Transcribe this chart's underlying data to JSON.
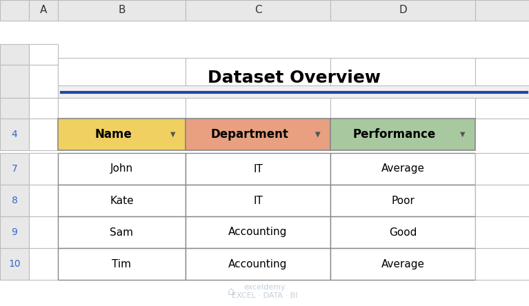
{
  "title": "Dataset Overview",
  "title_fontsize": 18,
  "title_fontweight": "bold",
  "col_headers": [
    "Name",
    "Department",
    "Performance"
  ],
  "col_header_colors": [
    "#F0D060",
    "#E8A080",
    "#A8C8A0"
  ],
  "rows": [
    [
      "John",
      "IT",
      "Average"
    ],
    [
      "Kate",
      "IT",
      "Poor"
    ],
    [
      "Sam",
      "Accounting",
      "Good"
    ],
    [
      "Tim",
      "Accounting",
      "Average"
    ]
  ],
  "row_numbers": [
    "7",
    "8",
    "9",
    "10"
  ],
  "header_row_number": "4",
  "col_labels": [
    "A",
    "B",
    "C",
    "D"
  ],
  "bg_color": "#FFFFFF",
  "grid_color": "#BBBBBB",
  "header_bg": "#E8E8E8",
  "title_bg": "#ECECEC",
  "title_underline_color": "#2244AA",
  "cell_text_color": "#000000",
  "row_num_color": "#3366CC",
  "col_label_color": "#333333",
  "watermark_text": "exceldemy\nEXCEL · DATA · BI",
  "watermark_color": "#AABBCC"
}
